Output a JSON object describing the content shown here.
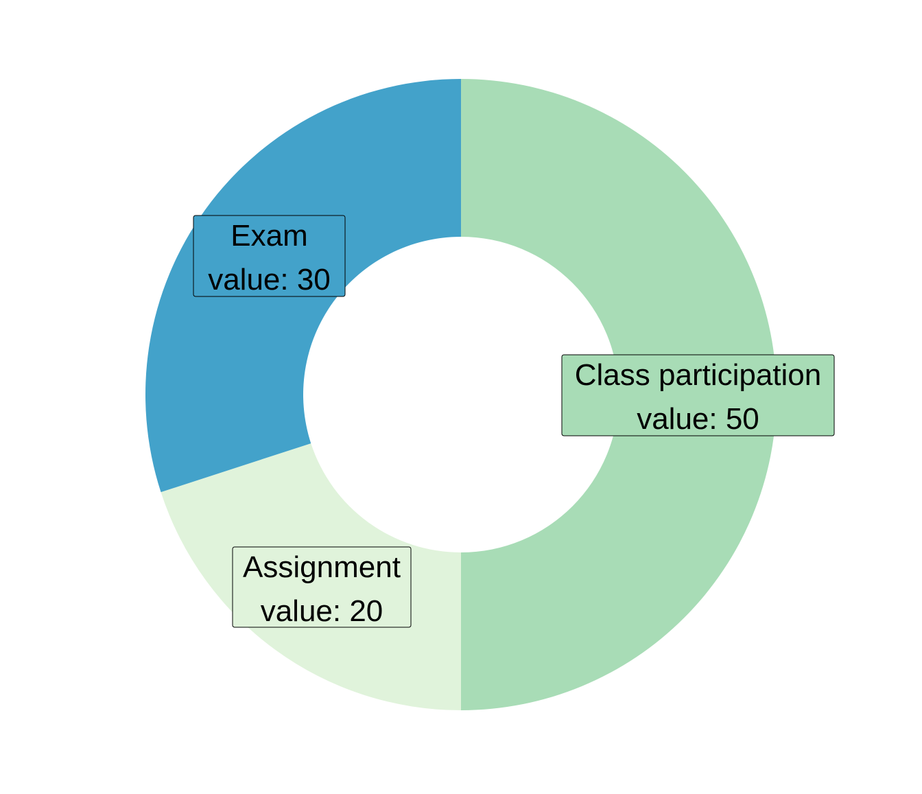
{
  "chart_data": {
    "type": "pie",
    "variant": "donut",
    "categories": [
      "Class participation",
      "Assignment",
      "Exam"
    ],
    "values": [
      50,
      20,
      30
    ],
    "value_prefix": "value: ",
    "colors": [
      "#a8dcb6",
      "#e0f3db",
      "#43a2ca"
    ],
    "start": "12 o'clock",
    "direction": "clockwise",
    "title": "",
    "legend": "none"
  }
}
